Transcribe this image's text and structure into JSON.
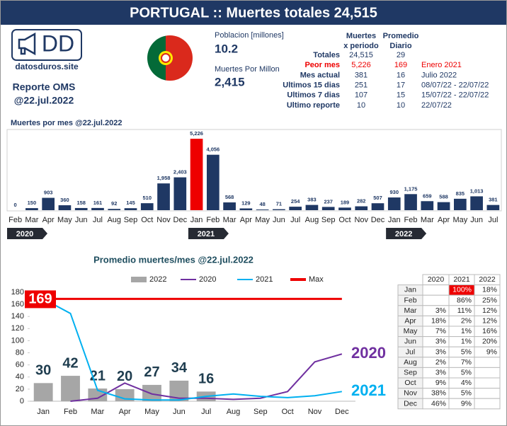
{
  "header": {
    "title": "PORTUGAL :: Muertes totales 24,515"
  },
  "logo": {
    "mark": "DD",
    "site": "datosduros.site",
    "report": "Reporte OMS",
    "date": "@22.jul.2022"
  },
  "stats": {
    "population_label": "Poblacion [millones]",
    "population": "10.2",
    "per_million_label": "Muertes Por Millon",
    "per_million": "2,415"
  },
  "summary": {
    "headers": [
      [
        "Muertes",
        "x periodo"
      ],
      [
        "Promedio",
        "Diario"
      ]
    ],
    "rows": [
      [
        "Totales",
        "24,515",
        "29",
        ""
      ],
      [
        "Peor mes",
        "5,226",
        "169",
        "Enero 2021"
      ],
      [
        "Mes actual",
        "381",
        "16",
        "Julio 2022"
      ],
      [
        "Ultimos 15 dias",
        "251",
        "17",
        "08/07/22 - 22/07/22"
      ],
      [
        "Ultimos 7 dias",
        "107",
        "15",
        "15/07/22 - 22/07/22"
      ],
      [
        "Ultimo reporte",
        "10",
        "10",
        "22/07/22"
      ]
    ]
  },
  "chart_data": [
    {
      "type": "bar",
      "title": "Muertes por mes @22.jul.2022",
      "categories": [
        "Feb",
        "Mar",
        "Apr",
        "May",
        "Jun",
        "Jul",
        "Aug",
        "Sep",
        "Oct",
        "Nov",
        "Dec",
        "Jan",
        "Feb",
        "Mar",
        "Apr",
        "May",
        "Jun",
        "Jul",
        "Aug",
        "Sep",
        "Oct",
        "Nov",
        "Dec",
        "Jan",
        "Feb",
        "Mar",
        "Apr",
        "May",
        "Jun",
        "Jul"
      ],
      "values": [
        0,
        150,
        903,
        360,
        158,
        161,
        92,
        145,
        510,
        1958,
        2403,
        5226,
        4056,
        568,
        129,
        48,
        71,
        254,
        383,
        237,
        189,
        282,
        507,
        930,
        1175,
        659,
        588,
        835,
        1013,
        381
      ],
      "value_labels": [
        "0",
        "150",
        "903",
        "360",
        "158",
        "161",
        "92",
        "145",
        "510",
        "1,958",
        "2,403",
        "5,226",
        "4,056",
        "568",
        "129",
        "48",
        "71",
        "254",
        "383",
        "237",
        "189",
        "282",
        "507",
        "930",
        "1,175",
        "659",
        "588",
        "835",
        "1,013",
        "381"
      ],
      "year_labels": [
        "2020",
        "2021",
        "2022"
      ],
      "color": "#1f3864",
      "max_color": "#ee0000",
      "ylim": [
        0,
        5800
      ]
    },
    {
      "type": "line",
      "title": "Promedio muertes/mes @22.jul.2022",
      "categories": [
        "Jan",
        "Feb",
        "Mar",
        "Apr",
        "May",
        "Jun",
        "Jul",
        "Aug",
        "Sep",
        "Oct",
        "Nov",
        "Dec"
      ],
      "series": [
        {
          "name": "2022",
          "type": "bar",
          "color": "#a6a6a6",
          "values": [
            30,
            42,
            21,
            20,
            27,
            34,
            16,
            null,
            null,
            null,
            null,
            null
          ]
        },
        {
          "name": "2020",
          "type": "line",
          "color": "#7030a0",
          "values": [
            null,
            0,
            5,
            30,
            12,
            5,
            5,
            3,
            5,
            16,
            65,
            78
          ]
        },
        {
          "name": "2021",
          "type": "line",
          "color": "#00b0f0",
          "values": [
            169,
            145,
            18,
            4,
            2,
            2,
            8,
            12,
            8,
            6,
            9,
            16
          ]
        },
        {
          "name": "Max",
          "type": "line",
          "color": "#ee0000",
          "values": [
            169,
            169,
            169,
            169,
            169,
            169,
            169,
            169,
            169,
            169,
            169,
            169
          ]
        }
      ],
      "ylim": [
        0,
        180
      ],
      "yticks": [
        0,
        20,
        40,
        60,
        80,
        100,
        120,
        140,
        160,
        180
      ]
    }
  ],
  "pct_table": {
    "headers": [
      "2020",
      "2021",
      "2022"
    ],
    "rows": [
      [
        "Jan",
        "",
        "100%",
        "18%"
      ],
      [
        "Feb",
        "",
        "86%",
        "25%"
      ],
      [
        "Mar",
        "3%",
        "11%",
        "12%"
      ],
      [
        "Apr",
        "18%",
        "2%",
        "12%"
      ],
      [
        "May",
        "7%",
        "1%",
        "16%"
      ],
      [
        "Jun",
        "3%",
        "1%",
        "20%"
      ],
      [
        "Jul",
        "3%",
        "5%",
        "9%"
      ],
      [
        "Aug",
        "2%",
        "7%",
        ""
      ],
      [
        "Sep",
        "3%",
        "5%",
        ""
      ],
      [
        "Oct",
        "9%",
        "4%",
        ""
      ],
      [
        "Nov",
        "38%",
        "5%",
        ""
      ],
      [
        "Dec",
        "46%",
        "9%",
        ""
      ]
    ]
  }
}
